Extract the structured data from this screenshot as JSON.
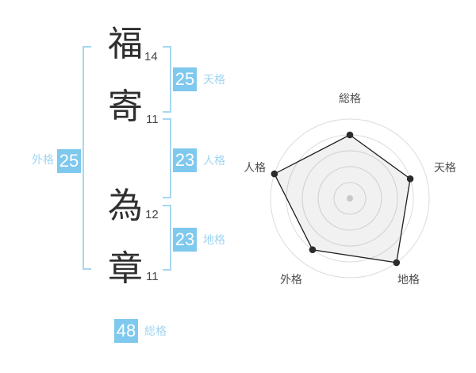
{
  "name_display": {
    "surname": [
      {
        "char": "福",
        "strokes": "14"
      },
      {
        "char": "寄",
        "strokes": "11"
      }
    ],
    "given": [
      {
        "char": "為",
        "strokes": "12"
      },
      {
        "char": "章",
        "strokes": "11"
      }
    ]
  },
  "kaku": {
    "tenkaku": {
      "label": "天格",
      "value": "25"
    },
    "jinkaku": {
      "label": "人格",
      "value": "23"
    },
    "chikaku": {
      "label": "地格",
      "value": "23"
    },
    "gaikaku": {
      "label": "外格",
      "value": "25"
    },
    "soukaku": {
      "label": "総格",
      "value": "48"
    }
  },
  "colors": {
    "accent_blue": "#7fc8ee",
    "accent_blue_light": "#a0d5f2",
    "bracket_blue": "#a7d7f1",
    "text_dark": "#2f2f2f",
    "chart_grid": "#dcdcdc",
    "chart_label": "#4f4f4f",
    "chart_line": "#1e1e1e",
    "chart_fill": "rgba(0,0,0,0.055)",
    "chart_dot": "#2b2b2b",
    "chart_center_dot": "#c8c8c8"
  },
  "chart_data": {
    "type": "radar",
    "categories": [
      "総格",
      "天格",
      "地格",
      "外格",
      "人格"
    ],
    "values": [
      4,
      4,
      5,
      4,
      5
    ],
    "max": 5,
    "rings": 5,
    "ring_step": 1,
    "start_angle_deg": -90,
    "grid": "circular-no-spokes",
    "legend_position": "none",
    "title": ""
  }
}
